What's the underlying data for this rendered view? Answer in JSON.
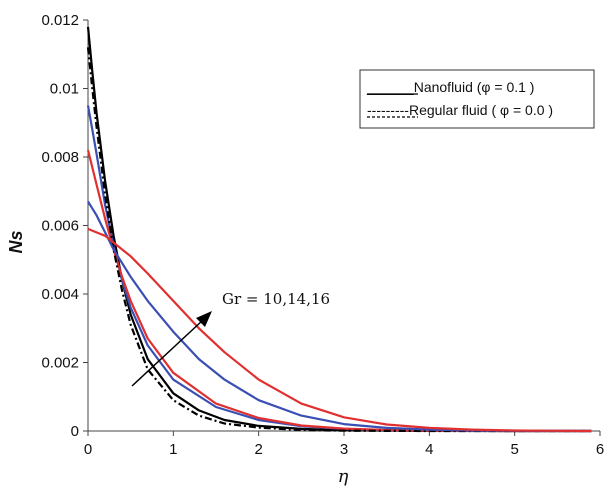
{
  "chart_data": {
    "type": "line",
    "xlabel": "η",
    "ylabel": "Ns",
    "xlim": [
      0,
      6
    ],
    "ylim": [
      0,
      0.012
    ],
    "x_ticks": [
      "0",
      "1",
      "2",
      "3",
      "4",
      "5",
      "6"
    ],
    "y_ticks": [
      "0",
      "0.002",
      "0.004",
      "0.006",
      "0.008",
      "0.01",
      "0.012"
    ],
    "grid": false,
    "legend": {
      "placement": "top-right",
      "entries": [
        {
          "text": "______Nanofluid  (φ = 0.1 )",
          "style": "solid"
        },
        {
          "text": "---------Regular fluid ( φ = 0.0 )",
          "style": "dashed"
        }
      ]
    },
    "annotation": "Gr = 10,14,16",
    "series": [
      {
        "color": "#000000",
        "style": "solid",
        "points": [
          [
            0,
            0.0118
          ],
          [
            0.05,
            0.0105
          ],
          [
            0.1,
            0.0093
          ],
          [
            0.2,
            0.0073
          ],
          [
            0.3,
            0.0057
          ],
          [
            0.4,
            0.0044
          ],
          [
            0.5,
            0.0034
          ],
          [
            0.7,
            0.0021
          ],
          [
            1.0,
            0.0011
          ],
          [
            1.3,
            0.0006
          ],
          [
            1.6,
            0.00032
          ],
          [
            2.0,
            0.00015
          ],
          [
            2.5,
            6e-05
          ],
          [
            3.0,
            2e-05
          ],
          [
            4.0,
            3e-06
          ],
          [
            5.0,
            0
          ],
          [
            5.9,
            0
          ]
        ]
      },
      {
        "color": "#3a4fb3",
        "style": "solid",
        "points": [
          [
            0,
            0.0095
          ],
          [
            0.05,
            0.0088
          ],
          [
            0.1,
            0.0081
          ],
          [
            0.2,
            0.0066
          ],
          [
            0.3,
            0.0054
          ],
          [
            0.4,
            0.0044
          ],
          [
            0.5,
            0.0036
          ],
          [
            0.7,
            0.0025
          ],
          [
            1.0,
            0.0015
          ],
          [
            1.5,
            0.0007
          ],
          [
            2.0,
            0.00032
          ],
          [
            2.5,
            0.00014
          ],
          [
            3.0,
            6e-05
          ],
          [
            3.5,
            2e-05
          ],
          [
            4.0,
            8e-06
          ],
          [
            5.0,
            0
          ],
          [
            5.9,
            0
          ]
        ]
      },
      {
        "color": "#e03030",
        "style": "solid",
        "points": [
          [
            0,
            0.0082
          ],
          [
            0.05,
            0.0077
          ],
          [
            0.1,
            0.0072
          ],
          [
            0.2,
            0.0062
          ],
          [
            0.3,
            0.0053
          ],
          [
            0.4,
            0.0045
          ],
          [
            0.5,
            0.0038
          ],
          [
            0.7,
            0.0027
          ],
          [
            1.0,
            0.0017
          ],
          [
            1.5,
            0.0008
          ],
          [
            2.0,
            0.00038
          ],
          [
            2.5,
            0.00016
          ],
          [
            3.0,
            7e-05
          ],
          [
            3.5,
            3e-05
          ],
          [
            4.0,
            1e-05
          ],
          [
            5.0,
            0
          ],
          [
            5.9,
            0
          ]
        ]
      },
      {
        "color": "#000000",
        "style": "dashed",
        "points": [
          [
            0,
            0.0112
          ],
          [
            0.05,
            0.01
          ],
          [
            0.1,
            0.0089
          ],
          [
            0.2,
            0.0069
          ],
          [
            0.3,
            0.0053
          ],
          [
            0.4,
            0.0041
          ],
          [
            0.5,
            0.0031
          ],
          [
            0.7,
            0.0018
          ],
          [
            1.0,
            0.0009
          ],
          [
            1.3,
            0.00045
          ],
          [
            1.6,
            0.00022
          ],
          [
            2.0,
            0.0001
          ],
          [
            2.5,
            3e-05
          ],
          [
            3.0,
            1e-05
          ],
          [
            4.0,
            0
          ],
          [
            5.9,
            0
          ]
        ]
      },
      {
        "color": "#3a4fb3",
        "style": "solid",
        "points": [
          [
            0,
            0.0067
          ],
          [
            0.05,
            0.0065
          ],
          [
            0.1,
            0.0063
          ],
          [
            0.2,
            0.0058
          ],
          [
            0.3,
            0.0053
          ],
          [
            0.5,
            0.0045
          ],
          [
            0.7,
            0.0038
          ],
          [
            1.0,
            0.0029
          ],
          [
            1.3,
            0.0021
          ],
          [
            1.6,
            0.0015
          ],
          [
            2.0,
            0.0009
          ],
          [
            2.5,
            0.00045
          ],
          [
            3.0,
            0.0002
          ],
          [
            3.5,
            9e-05
          ],
          [
            4.0,
            4e-05
          ],
          [
            4.5,
            1.5e-05
          ],
          [
            5.0,
            5e-06
          ],
          [
            5.9,
            0
          ]
        ]
      },
      {
        "color": "#e03030",
        "style": "solid",
        "points": [
          [
            0,
            0.0059
          ],
          [
            0.1,
            0.0058
          ],
          [
            0.2,
            0.0057
          ],
          [
            0.3,
            0.0055
          ],
          [
            0.5,
            0.0051
          ],
          [
            0.7,
            0.0046
          ],
          [
            1.0,
            0.0038
          ],
          [
            1.3,
            0.003
          ],
          [
            1.6,
            0.0023
          ],
          [
            2.0,
            0.0015
          ],
          [
            2.5,
            0.0008
          ],
          [
            3.0,
            0.0004
          ],
          [
            3.5,
            0.00019
          ],
          [
            4.0,
            9e-05
          ],
          [
            4.5,
            4e-05
          ],
          [
            5.0,
            1.5e-05
          ],
          [
            5.5,
            5e-06
          ],
          [
            5.9,
            0
          ]
        ]
      }
    ]
  }
}
